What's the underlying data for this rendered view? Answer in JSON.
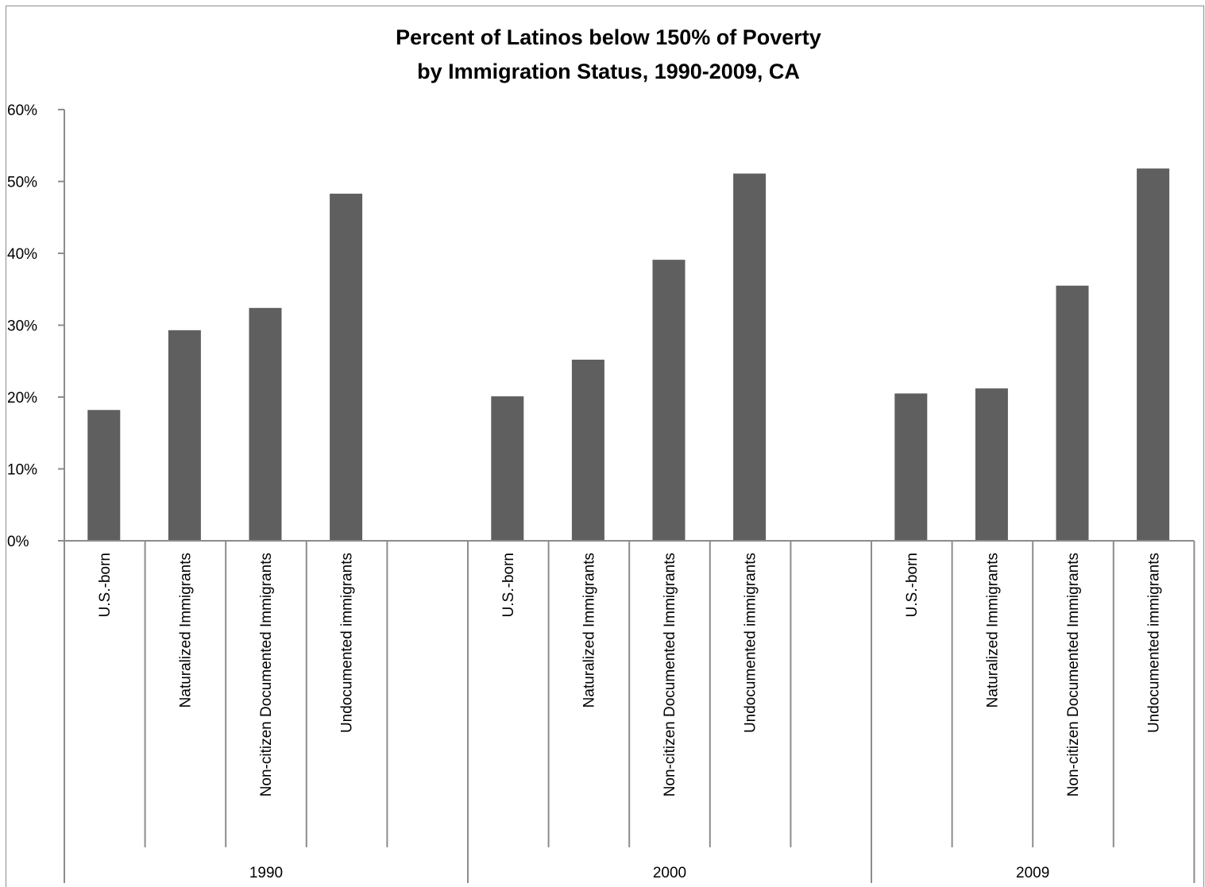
{
  "chart_data": {
    "type": "bar",
    "title": [
      "Percent of Latinos below 150% of Poverty",
      "by Immigration Status, 1990-2009, CA"
    ],
    "ylim": [
      0,
      0.6
    ],
    "yticks": [
      "0%",
      "10%",
      "20%",
      "30%",
      "40%",
      "50%",
      "60%"
    ],
    "grid": false,
    "bar_color": "#5f5f5f",
    "axis_color": "#8c8c8c",
    "groups": [
      {
        "label": "1990",
        "categories": [
          "U.S.-born",
          "Naturalized Immigrants",
          "Non-citizen Documented Immigrants",
          "Undocumented immigrants"
        ],
        "values": [
          0.182,
          0.293,
          0.324,
          0.483
        ]
      },
      {
        "label": "2000",
        "categories": [
          "U.S.-born",
          "Naturalized Immigrants",
          "Non-citizen Documented Immigrants",
          "Undocumented immigrants"
        ],
        "values": [
          0.201,
          0.252,
          0.391,
          0.511
        ]
      },
      {
        "label": "2009",
        "categories": [
          "U.S.-born",
          "Naturalized Immigrants",
          "Non-citizen Documented Immigrants",
          "Undocumented immigrants"
        ],
        "values": [
          0.205,
          0.212,
          0.355,
          0.518
        ]
      }
    ]
  }
}
